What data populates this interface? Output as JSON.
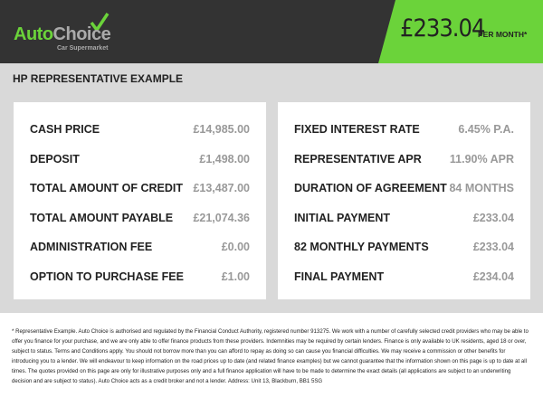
{
  "brand": {
    "name_a": "Auto",
    "name_b": "Choice",
    "tagline": "Car Supermarket",
    "accent": "#6bd33a"
  },
  "monthly": {
    "amount": "£233.04",
    "label": "PER MONTH*"
  },
  "section_title": "HP REPRESENTATIVE EXAMPLE",
  "left": [
    {
      "label": "CASH PRICE",
      "value": "£14,985.00"
    },
    {
      "label": "DEPOSIT",
      "value": "£1,498.00"
    },
    {
      "label": "TOTAL AMOUNT OF CREDIT",
      "value": "£13,487.00"
    },
    {
      "label": "TOTAL AMOUNT PAYABLE",
      "value": "£21,074.36"
    },
    {
      "label": "ADMINISTRATION FEE",
      "value": "£0.00"
    },
    {
      "label": "OPTION TO PURCHASE FEE",
      "value": "£1.00"
    }
  ],
  "right": [
    {
      "label": "FIXED INTEREST RATE",
      "value": "6.45% P.A."
    },
    {
      "label": "REPRESENTATIVE APR",
      "value": "11.90% APR"
    },
    {
      "label": "DURATION OF AGREEMENT",
      "value": "84 MONTHS"
    },
    {
      "label": "INITIAL PAYMENT",
      "value": "£233.04"
    },
    {
      "label": "82 MONTHLY PAYMENTS",
      "value": "£233.04"
    },
    {
      "label": "FINAL PAYMENT",
      "value": "£234.04"
    }
  ],
  "disclaimer": "* Representative Example. Auto Choice is authorised and regulated by the Financial Conduct Authority, registered number 913275. We work with a number of carefully selected credit providers who may be able to offer you finance for your purchase, and we are only able to offer finance products from these providers. Indemnities may be required by certain lenders. Finance is only available to UK residents, aged 18 or over, subject to status. Terms and Conditions apply. You should not borrow more than you can afford to repay as doing so can cause you financial difficulties. We may receive a commission or other benefits for introducing you to a lender. We will endeavour to keep information on the road prices up to date (and related finance examples) but we cannot guarantee that the information shown on this page is up to date at all times. The quotes provided on this page are only for illustrative purposes only and a full finance application will have to be made to determine the exact details (all applications are subject to an underwriting decision and are subject to status). Auto Choice acts as a credit broker and not a lender. Address: Unit 13, Blackburn, BB1 5SG"
}
